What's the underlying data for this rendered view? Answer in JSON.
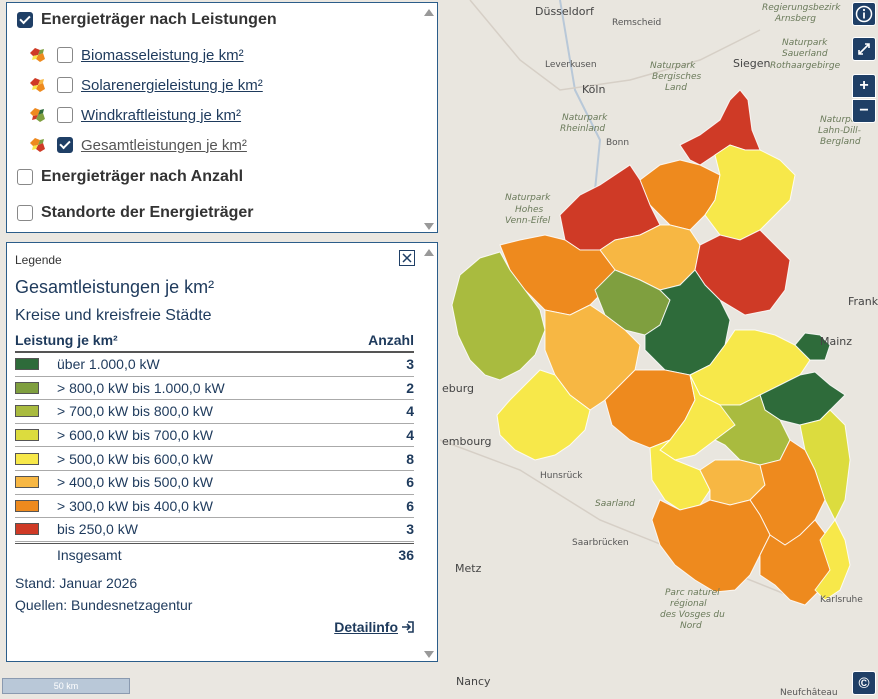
{
  "layers": {
    "group1": {
      "label": "Energieträger nach Leistungen",
      "checked": true
    },
    "sublayers": [
      {
        "label": "Biomasseleistung je km²",
        "checked": false
      },
      {
        "label": "Solarenergieleistung je km²",
        "checked": false
      },
      {
        "label": "Windkraftleistung je km²",
        "checked": false
      },
      {
        "label": "Gesamtleistungen je km²",
        "checked": true
      }
    ],
    "group2": {
      "label": "Energieträger nach Anzahl",
      "checked": false
    },
    "group3": {
      "label": "Standorte der Energieträger",
      "checked": false
    }
  },
  "legend": {
    "header": "Legende",
    "title": "Gesamtleistungen je km²",
    "subtitle": "Kreise und kreisfreie Städte",
    "col_class": "Leistung je km²",
    "col_count": "Anzahl",
    "rows": [
      {
        "label": "über 1.000,0 kW",
        "count": "3",
        "color": "#2e6b3a"
      },
      {
        "label": "> 800,0 kW bis 1.000,0 kW",
        "count": "2",
        "color": "#7f9f3f"
      },
      {
        "label": "> 700,0 kW bis 800,0 kW",
        "count": "4",
        "color": "#a9bb3f"
      },
      {
        "label": "> 600,0 kW bis 700,0 kW",
        "count": "4",
        "color": "#dcdc3e"
      },
      {
        "label": "> 500,0 kW bis 600,0 kW",
        "count": "8",
        "color": "#f7e84a"
      },
      {
        "label": "> 400,0 kW bis 500,0 kW",
        "count": "6",
        "color": "#f7b743"
      },
      {
        "label": "> 300,0 kW bis 400,0 kW",
        "count": "6",
        "color": "#ee8a1e"
      },
      {
        "label": "bis 250,0 kW",
        "count": "3",
        "color": "#cf3a26"
      }
    ],
    "total_label": "Insgesamt",
    "total_count": "36",
    "stand": "Stand: Januar 2026",
    "quellen": "Quellen: Bundesnetzagentur",
    "detail_link": "Detailinfo"
  },
  "map": {
    "places": [
      "Düsseldorf",
      "Remscheid",
      "Leverkusen",
      "Köln",
      "Bonn",
      "Siegen",
      "Arnsberg",
      "Frank",
      "Mainz",
      "Metz",
      "Luxembourg",
      "Saarbrücken",
      "Karlsruhe",
      "Nancy",
      "Neufchâteau",
      "Saarland",
      "Hunsrück"
    ],
    "parks": [
      "Naturpark Bergisches Land",
      "Naturpark Rheinland",
      "Naturpark Hohes Venn-Eifel",
      "Naturpark Sauerland Rothaargebirge",
      "Naturpark Lahn-Dill-Bergland",
      "Parc naturel régional des Vosges du Nord",
      "Regierungsbezirk Arnsberg"
    ],
    "scale_label": "50 km"
  },
  "controls": {
    "info_icon": "info-icon",
    "fullscreen_icon": "fullscreen-icon",
    "zoom_in": "+",
    "zoom_out": "−",
    "copyright": "©"
  }
}
